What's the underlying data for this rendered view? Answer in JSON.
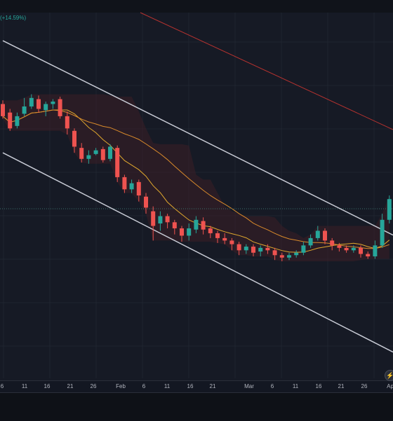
{
  "header": {
    "change_text": "(+14.59%)"
  },
  "x_axis": {
    "ticks": [
      "6",
      "11",
      "16",
      "21",
      "26",
      "Feb",
      "6",
      "11",
      "16",
      "21",
      "Mar",
      "6",
      "11",
      "16",
      "21",
      "26",
      "Ap"
    ]
  },
  "colors": {
    "bull": "#26a69a",
    "bear": "#ef5350",
    "channel": "#c9ccd6",
    "ma_fast": "#e0a82e",
    "ma_slow": "#d98a2b",
    "ma_long": "#b5322f",
    "cloud_bull": "#1e3a2c",
    "cloud_bear": "#3d1f26"
  },
  "icons": {
    "lightning": "lightning-icon"
  },
  "chart_data": {
    "type": "candlestick",
    "title": "",
    "xlabel": "",
    "ylabel": "",
    "candles": [
      {
        "o": 0.4,
        "c": 0.3,
        "h": 0.43,
        "l": 0.28
      },
      {
        "o": 0.33,
        "c": 0.2,
        "h": 0.36,
        "l": 0.18
      },
      {
        "o": 0.22,
        "c": 0.3,
        "h": 0.33,
        "l": 0.2
      },
      {
        "o": 0.32,
        "c": 0.38,
        "h": 0.45,
        "l": 0.3
      },
      {
        "o": 0.38,
        "c": 0.45,
        "h": 0.48,
        "l": 0.36
      },
      {
        "o": 0.44,
        "c": 0.36,
        "h": 0.47,
        "l": 0.33
      },
      {
        "o": 0.35,
        "c": 0.4,
        "h": 0.42,
        "l": 0.3
      },
      {
        "o": 0.4,
        "c": 0.42,
        "h": 0.44,
        "l": 0.36
      },
      {
        "o": 0.44,
        "c": 0.3,
        "h": 0.46,
        "l": 0.28
      },
      {
        "o": 0.3,
        "c": 0.2,
        "h": 0.34,
        "l": 0.15
      },
      {
        "o": 0.18,
        "c": 0.05,
        "h": 0.2,
        "l": 0.0
      },
      {
        "o": 0.04,
        "c": -0.05,
        "h": 0.08,
        "l": -0.08
      },
      {
        "o": -0.05,
        "c": -0.02,
        "h": 0.02,
        "l": -0.09
      },
      {
        "o": -0.01,
        "c": 0.02,
        "h": 0.04,
        "l": -0.02
      },
      {
        "o": 0.03,
        "c": -0.06,
        "h": 0.05,
        "l": -0.08
      },
      {
        "o": -0.05,
        "c": 0.05,
        "h": 0.07,
        "l": -0.07
      },
      {
        "o": 0.04,
        "c": -0.2,
        "h": 0.06,
        "l": -0.24
      },
      {
        "o": -0.2,
        "c": -0.3,
        "h": -0.18,
        "l": -0.33
      },
      {
        "o": -0.3,
        "c": -0.25,
        "h": -0.22,
        "l": -0.33
      },
      {
        "o": -0.24,
        "c": -0.35,
        "h": -0.22,
        "l": -0.4
      },
      {
        "o": -0.36,
        "c": -0.45,
        "h": -0.33,
        "l": -0.5
      },
      {
        "o": -0.48,
        "c": -0.6,
        "h": -0.44,
        "l": -0.72
      },
      {
        "o": -0.58,
        "c": -0.52,
        "h": -0.48,
        "l": -0.64
      },
      {
        "o": -0.52,
        "c": -0.57,
        "h": -0.5,
        "l": -0.62
      },
      {
        "o": -0.57,
        "c": -0.62,
        "h": -0.55,
        "l": -0.67
      },
      {
        "o": -0.62,
        "c": -0.68,
        "h": -0.6,
        "l": -0.73
      },
      {
        "o": -0.68,
        "c": -0.62,
        "h": -0.58,
        "l": -0.72
      },
      {
        "o": -0.63,
        "c": -0.55,
        "h": -0.52,
        "l": -0.66
      },
      {
        "o": -0.56,
        "c": -0.63,
        "h": -0.53,
        "l": -0.67
      },
      {
        "o": -0.62,
        "c": -0.66,
        "h": -0.6,
        "l": -0.7
      },
      {
        "o": -0.66,
        "c": -0.7,
        "h": -0.64,
        "l": -0.74
      },
      {
        "o": -0.7,
        "c": -0.72,
        "h": -0.66,
        "l": -0.75
      },
      {
        "o": -0.72,
        "c": -0.75,
        "h": -0.7,
        "l": -0.8
      },
      {
        "o": -0.75,
        "c": -0.8,
        "h": -0.73,
        "l": -0.84
      },
      {
        "o": -0.8,
        "c": -0.77,
        "h": -0.75,
        "l": -0.83
      },
      {
        "o": -0.77,
        "c": -0.82,
        "h": -0.75,
        "l": -0.85
      },
      {
        "o": -0.81,
        "c": -0.78,
        "h": -0.76,
        "l": -0.85
      },
      {
        "o": -0.78,
        "c": -0.8,
        "h": -0.75,
        "l": -0.83
      },
      {
        "o": -0.8,
        "c": -0.84,
        "h": -0.78,
        "l": -0.88
      },
      {
        "o": -0.84,
        "c": -0.86,
        "h": -0.82,
        "l": -0.89
      },
      {
        "o": -0.86,
        "c": -0.84,
        "h": -0.82,
        "l": -0.88
      },
      {
        "o": -0.84,
        "c": -0.82,
        "h": -0.8,
        "l": -0.86
      },
      {
        "o": -0.82,
        "c": -0.76,
        "h": -0.73,
        "l": -0.84
      },
      {
        "o": -0.76,
        "c": -0.7,
        "h": -0.67,
        "l": -0.78
      },
      {
        "o": -0.7,
        "c": -0.64,
        "h": -0.6,
        "l": -0.72
      },
      {
        "o": -0.64,
        "c": -0.72,
        "h": -0.62,
        "l": -0.75
      },
      {
        "o": -0.72,
        "c": -0.76,
        "h": -0.7,
        "l": -0.8
      },
      {
        "o": -0.76,
        "c": -0.78,
        "h": -0.74,
        "l": -0.81
      },
      {
        "o": -0.78,
        "c": -0.8,
        "h": -0.76,
        "l": -0.82
      },
      {
        "o": -0.8,
        "c": -0.78,
        "h": -0.76,
        "l": -0.82
      },
      {
        "o": -0.78,
        "c": -0.83,
        "h": -0.76,
        "l": -0.86
      },
      {
        "o": -0.83,
        "c": -0.85,
        "h": -0.81,
        "l": -0.87
      },
      {
        "o": -0.85,
        "c": -0.76,
        "h": -0.72,
        "l": -0.87
      },
      {
        "o": -0.76,
        "c": -0.55,
        "h": -0.5,
        "l": -0.78
      },
      {
        "o": -0.55,
        "c": -0.38,
        "h": -0.35,
        "l": -0.58
      }
    ],
    "channel": {
      "upper": [
        [
          0,
          0.92
        ],
        [
          54,
          -0.66
        ]
      ],
      "lower": [
        [
          0,
          0.0
        ],
        [
          54,
          -1.62
        ]
      ]
    },
    "ranges": {
      "ylim": [
        -1.85,
        1.15
      ]
    }
  }
}
